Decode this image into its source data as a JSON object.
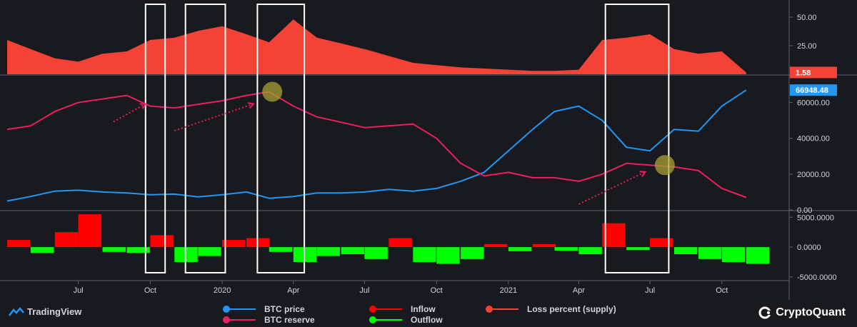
{
  "chart_data": [
    {
      "type": "area",
      "panel": "top",
      "series": [
        {
          "name": "Loss percent (supply)",
          "color": "#f44336"
        }
      ],
      "x": [
        "2019-04",
        "2019-05",
        "2019-06",
        "2019-07",
        "2019-08",
        "2019-09",
        "2019-10",
        "2019-11",
        "2019-12",
        "2020-01",
        "2020-02",
        "2020-03",
        "2020-04",
        "2020-05",
        "2020-06",
        "2020-07",
        "2020-08",
        "2020-09",
        "2020-10",
        "2020-11",
        "2020-12",
        "2021-01",
        "2021-02",
        "2021-03",
        "2021-04",
        "2021-05",
        "2021-06",
        "2021-07",
        "2021-08",
        "2021-09",
        "2021-10",
        "2021-11"
      ],
      "values": [
        30,
        22,
        14,
        11,
        18,
        20,
        30,
        32,
        38,
        42,
        35,
        28,
        48,
        32,
        27,
        22,
        16,
        10,
        8,
        6,
        5,
        4,
        3,
        3,
        4,
        30,
        32,
        35,
        22,
        18,
        20,
        1.58
      ],
      "ylim": [
        0,
        60
      ],
      "y_ticks": [
        "50.00",
        "25.00"
      ],
      "last_value_label": "1.58"
    },
    {
      "type": "line",
      "panel": "middle",
      "x": [
        "2019-04",
        "2019-05",
        "2019-06",
        "2019-07",
        "2019-08",
        "2019-09",
        "2019-10",
        "2019-11",
        "2019-12",
        "2020-01",
        "2020-02",
        "2020-03",
        "2020-04",
        "2020-05",
        "2020-06",
        "2020-07",
        "2020-08",
        "2020-09",
        "2020-10",
        "2020-11",
        "2020-12",
        "2021-01",
        "2021-02",
        "2021-03",
        "2021-04",
        "2021-05",
        "2021-06",
        "2021-07",
        "2021-08",
        "2021-09",
        "2021-10",
        "2021-11"
      ],
      "series": [
        {
          "name": "BTC price",
          "color": "#2196f3",
          "values": [
            5000,
            7500,
            10500,
            11000,
            10000,
            9500,
            8500,
            8800,
            7300,
            8500,
            10000,
            6500,
            7500,
            9500,
            9500,
            10000,
            11500,
            10500,
            12000,
            16000,
            21000,
            33000,
            45000,
            55000,
            58000,
            50000,
            35000,
            33000,
            45000,
            44000,
            58000,
            66948
          ]
        },
        {
          "name": "BTC reserve",
          "color": "#e91e63",
          "values": [
            45000,
            47000,
            55000,
            60000,
            62000,
            64000,
            58000,
            57000,
            59000,
            61000,
            64000,
            66000,
            58000,
            52000,
            49000,
            46000,
            47000,
            48000,
            40000,
            26000,
            19000,
            21000,
            18000,
            18000,
            16000,
            20000,
            26000,
            25000,
            24000,
            22000,
            12000,
            7000
          ]
        }
      ],
      "ylim": [
        0,
        75000
      ],
      "y_ticks": [
        "60000.00",
        "40000.00",
        "20000.00",
        "0.00"
      ],
      "last_value_label": "66948.48"
    },
    {
      "type": "bar",
      "panel": "bottom",
      "x": [
        "2019-04",
        "2019-05",
        "2019-06",
        "2019-07",
        "2019-08",
        "2019-09",
        "2019-10",
        "2019-11",
        "2019-12",
        "2020-01",
        "2020-02",
        "2020-03",
        "2020-04",
        "2020-05",
        "2020-06",
        "2020-07",
        "2020-08",
        "2020-09",
        "2020-10",
        "2020-11",
        "2020-12",
        "2021-01",
        "2021-02",
        "2021-03",
        "2021-04",
        "2021-05",
        "2021-06",
        "2021-07",
        "2021-08",
        "2021-09",
        "2021-10",
        "2021-11"
      ],
      "series": [
        {
          "name": "Inflow",
          "color": "#ff0000"
        },
        {
          "name": "Outflow",
          "color": "#00ff00"
        }
      ],
      "values": [
        1200,
        -1000,
        2500,
        5500,
        -800,
        -1000,
        2000,
        -2500,
        -1500,
        1200,
        1500,
        -800,
        -2500,
        -1500,
        -1200,
        -2000,
        1500,
        -2500,
        -2800,
        -2000,
        500,
        -700,
        500,
        -600,
        -1200,
        4000,
        -500,
        1500,
        -1200,
        -2000,
        -2500,
        -2800
      ],
      "ylim": [
        -5500,
        6000
      ],
      "y_ticks": [
        "5000.0000",
        "0.0000",
        "-5000.0000"
      ]
    }
  ],
  "x_ticks": [
    "Jul",
    "Oct",
    "2020",
    "Apr",
    "Jul",
    "Oct",
    "2021",
    "Apr",
    "Jul",
    "Oct"
  ],
  "legend": {
    "btc_price": "BTC price",
    "btc_reserve": "BTC reserve",
    "inflow": "Inflow",
    "outflow": "Outflow",
    "loss_percent": "Loss percent (supply)"
  },
  "branding": {
    "left": "TradingView",
    "right": "CryptoQuant"
  },
  "colors": {
    "background": "#181a20",
    "loss_area": "#f44336",
    "btc_price": "#2196f3",
    "btc_reserve": "#e91e63",
    "inflow": "#ff0000",
    "outflow": "#00ff00",
    "highlight": "#ffffff",
    "marker": "#a7a233"
  },
  "annotations": {
    "highlight_boxes": [
      [
        "2019-09-25",
        "2019-10-20"
      ],
      [
        "2019-11-15",
        "2020-01-05"
      ],
      [
        "2020-02-15",
        "2020-04-15"
      ],
      [
        "2021-05-05",
        "2021-07-25"
      ]
    ],
    "markers": [
      "2020-03-05",
      "2021-07-20"
    ],
    "arrows": [
      [
        "2019-08-15",
        "2019-09-25"
      ],
      [
        "2019-11-01",
        "2020-02-10"
      ],
      [
        "2021-04-01",
        "2021-06-25"
      ]
    ]
  }
}
